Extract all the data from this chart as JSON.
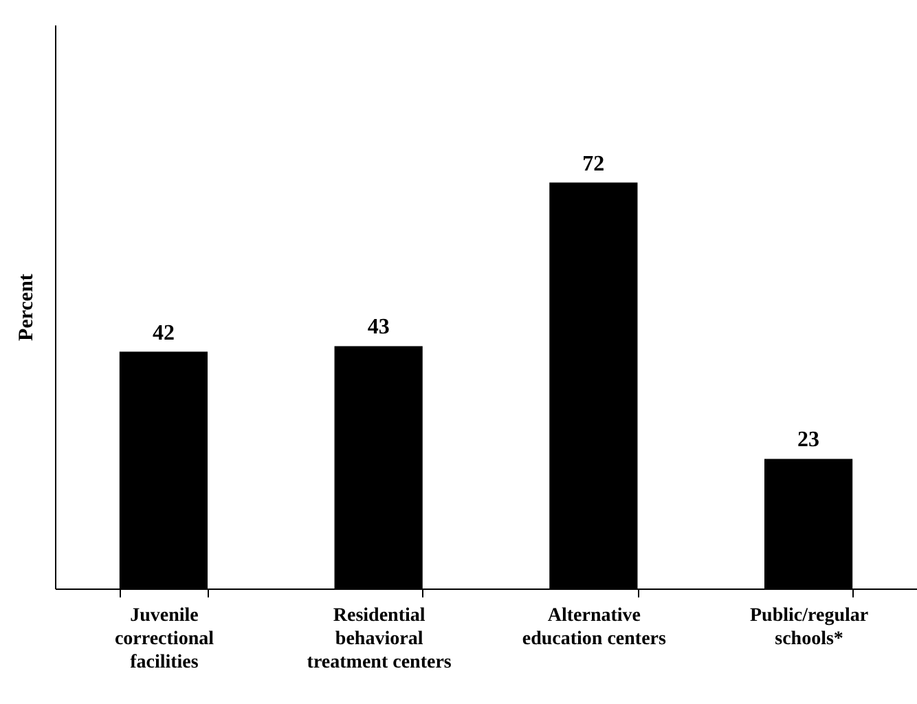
{
  "chart_data": {
    "type": "bar",
    "ylabel": "Percent",
    "categories": [
      "Juvenile correctional facilities",
      "Residential behavioral treatment centers",
      "Alternative education centers",
      "Public/regular schools*"
    ],
    "values": [
      42,
      43,
      72,
      23
    ],
    "color": "#000000",
    "data_labels": true,
    "ylim": [
      0,
      100
    ],
    "tick_labels": "x",
    "grid": false
  }
}
